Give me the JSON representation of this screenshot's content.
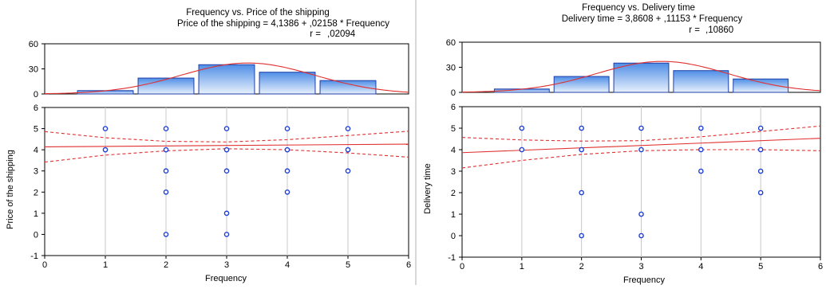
{
  "chart_data": [
    {
      "type": "scatter",
      "title": "Frequency vs. Price of the shipping",
      "equation": "Price of the shipping = 4,1386 + ,02158 * Frequency",
      "r_label": "r =",
      "r_value": ",02094",
      "xlabel": "Frequency",
      "ylabel": "Price of the shipping",
      "xlim": [
        0,
        6
      ],
      "ylim": [
        -1,
        6
      ],
      "xticks": [
        "0",
        "1",
        "2",
        "3",
        "4",
        "5",
        "6"
      ],
      "yticks": [
        "-1",
        "0",
        "1",
        "2",
        "3",
        "4",
        "5",
        "6"
      ],
      "intercept": 4.1386,
      "slope": 0.02158,
      "ci_lower": [
        [
          0,
          3.42
        ],
        [
          1,
          3.75
        ],
        [
          2,
          3.95
        ],
        [
          3,
          4.05
        ],
        [
          4,
          4.0
        ],
        [
          5,
          3.85
        ],
        [
          6,
          3.65
        ]
      ],
      "ci_upper": [
        [
          0,
          4.86
        ],
        [
          1,
          4.57
        ],
        [
          2,
          4.4
        ],
        [
          3,
          4.37
        ],
        [
          4,
          4.48
        ],
        [
          5,
          4.67
        ],
        [
          6,
          4.88
        ]
      ],
      "points": [
        [
          1,
          5
        ],
        [
          1,
          4
        ],
        [
          2,
          5
        ],
        [
          2,
          4
        ],
        [
          2,
          3
        ],
        [
          2,
          2
        ],
        [
          2,
          0
        ],
        [
          3,
          5
        ],
        [
          3,
          4
        ],
        [
          3,
          3
        ],
        [
          3,
          1
        ],
        [
          3,
          0
        ],
        [
          4,
          5
        ],
        [
          4,
          4
        ],
        [
          4,
          3
        ],
        [
          4,
          2
        ],
        [
          5,
          5
        ],
        [
          5,
          4
        ],
        [
          5,
          3
        ]
      ],
      "histogram": {
        "ylim": [
          0,
          60
        ],
        "yticks": [
          "0",
          "30",
          "60"
        ],
        "bins": [
          1,
          2,
          3,
          4,
          5
        ],
        "counts": [
          4,
          19,
          35,
          26,
          16
        ],
        "normal_mean": 3.35,
        "normal_sd": 1.1,
        "normal_peak": 37
      }
    },
    {
      "type": "scatter",
      "title": "Frequency vs. Delivery time",
      "equation": "Delivery time = 3,8608 + ,11153 * Frequency",
      "r_label": "r =",
      "r_value": ",10860",
      "xlabel": "Frequency",
      "ylabel": "Delivery time",
      "xlim": [
        0,
        6
      ],
      "ylim": [
        -1,
        6
      ],
      "xticks": [
        "0",
        "1",
        "2",
        "3",
        "4",
        "5",
        "6"
      ],
      "yticks": [
        "-1",
        "0",
        "1",
        "2",
        "3",
        "4",
        "5",
        "6"
      ],
      "intercept": 3.8608,
      "slope": 0.11153,
      "ci_lower": [
        [
          0,
          3.15
        ],
        [
          1,
          3.5
        ],
        [
          2,
          3.78
        ],
        [
          3,
          3.95
        ],
        [
          4,
          4.0
        ],
        [
          5,
          4.0
        ],
        [
          6,
          3.95
        ]
      ],
      "ci_upper": [
        [
          0,
          4.57
        ],
        [
          1,
          4.45
        ],
        [
          2,
          4.4
        ],
        [
          3,
          4.42
        ],
        [
          4,
          4.6
        ],
        [
          5,
          4.85
        ],
        [
          6,
          5.1
        ]
      ],
      "points": [
        [
          1,
          5
        ],
        [
          1,
          4
        ],
        [
          2,
          5
        ],
        [
          2,
          4
        ],
        [
          2,
          2
        ],
        [
          2,
          0
        ],
        [
          3,
          5
        ],
        [
          3,
          4
        ],
        [
          3,
          1
        ],
        [
          3,
          0
        ],
        [
          4,
          5
        ],
        [
          4,
          4
        ],
        [
          4,
          3
        ],
        [
          5,
          5
        ],
        [
          5,
          4
        ],
        [
          5,
          3
        ],
        [
          5,
          2
        ]
      ],
      "histogram": {
        "ylim": [
          0,
          60
        ],
        "yticks": [
          "0",
          "30",
          "60"
        ],
        "bins": [
          1,
          2,
          3,
          4,
          5
        ],
        "counts": [
          4,
          19,
          35,
          26,
          16
        ],
        "normal_mean": 3.35,
        "normal_sd": 1.1,
        "normal_peak": 37
      }
    }
  ]
}
